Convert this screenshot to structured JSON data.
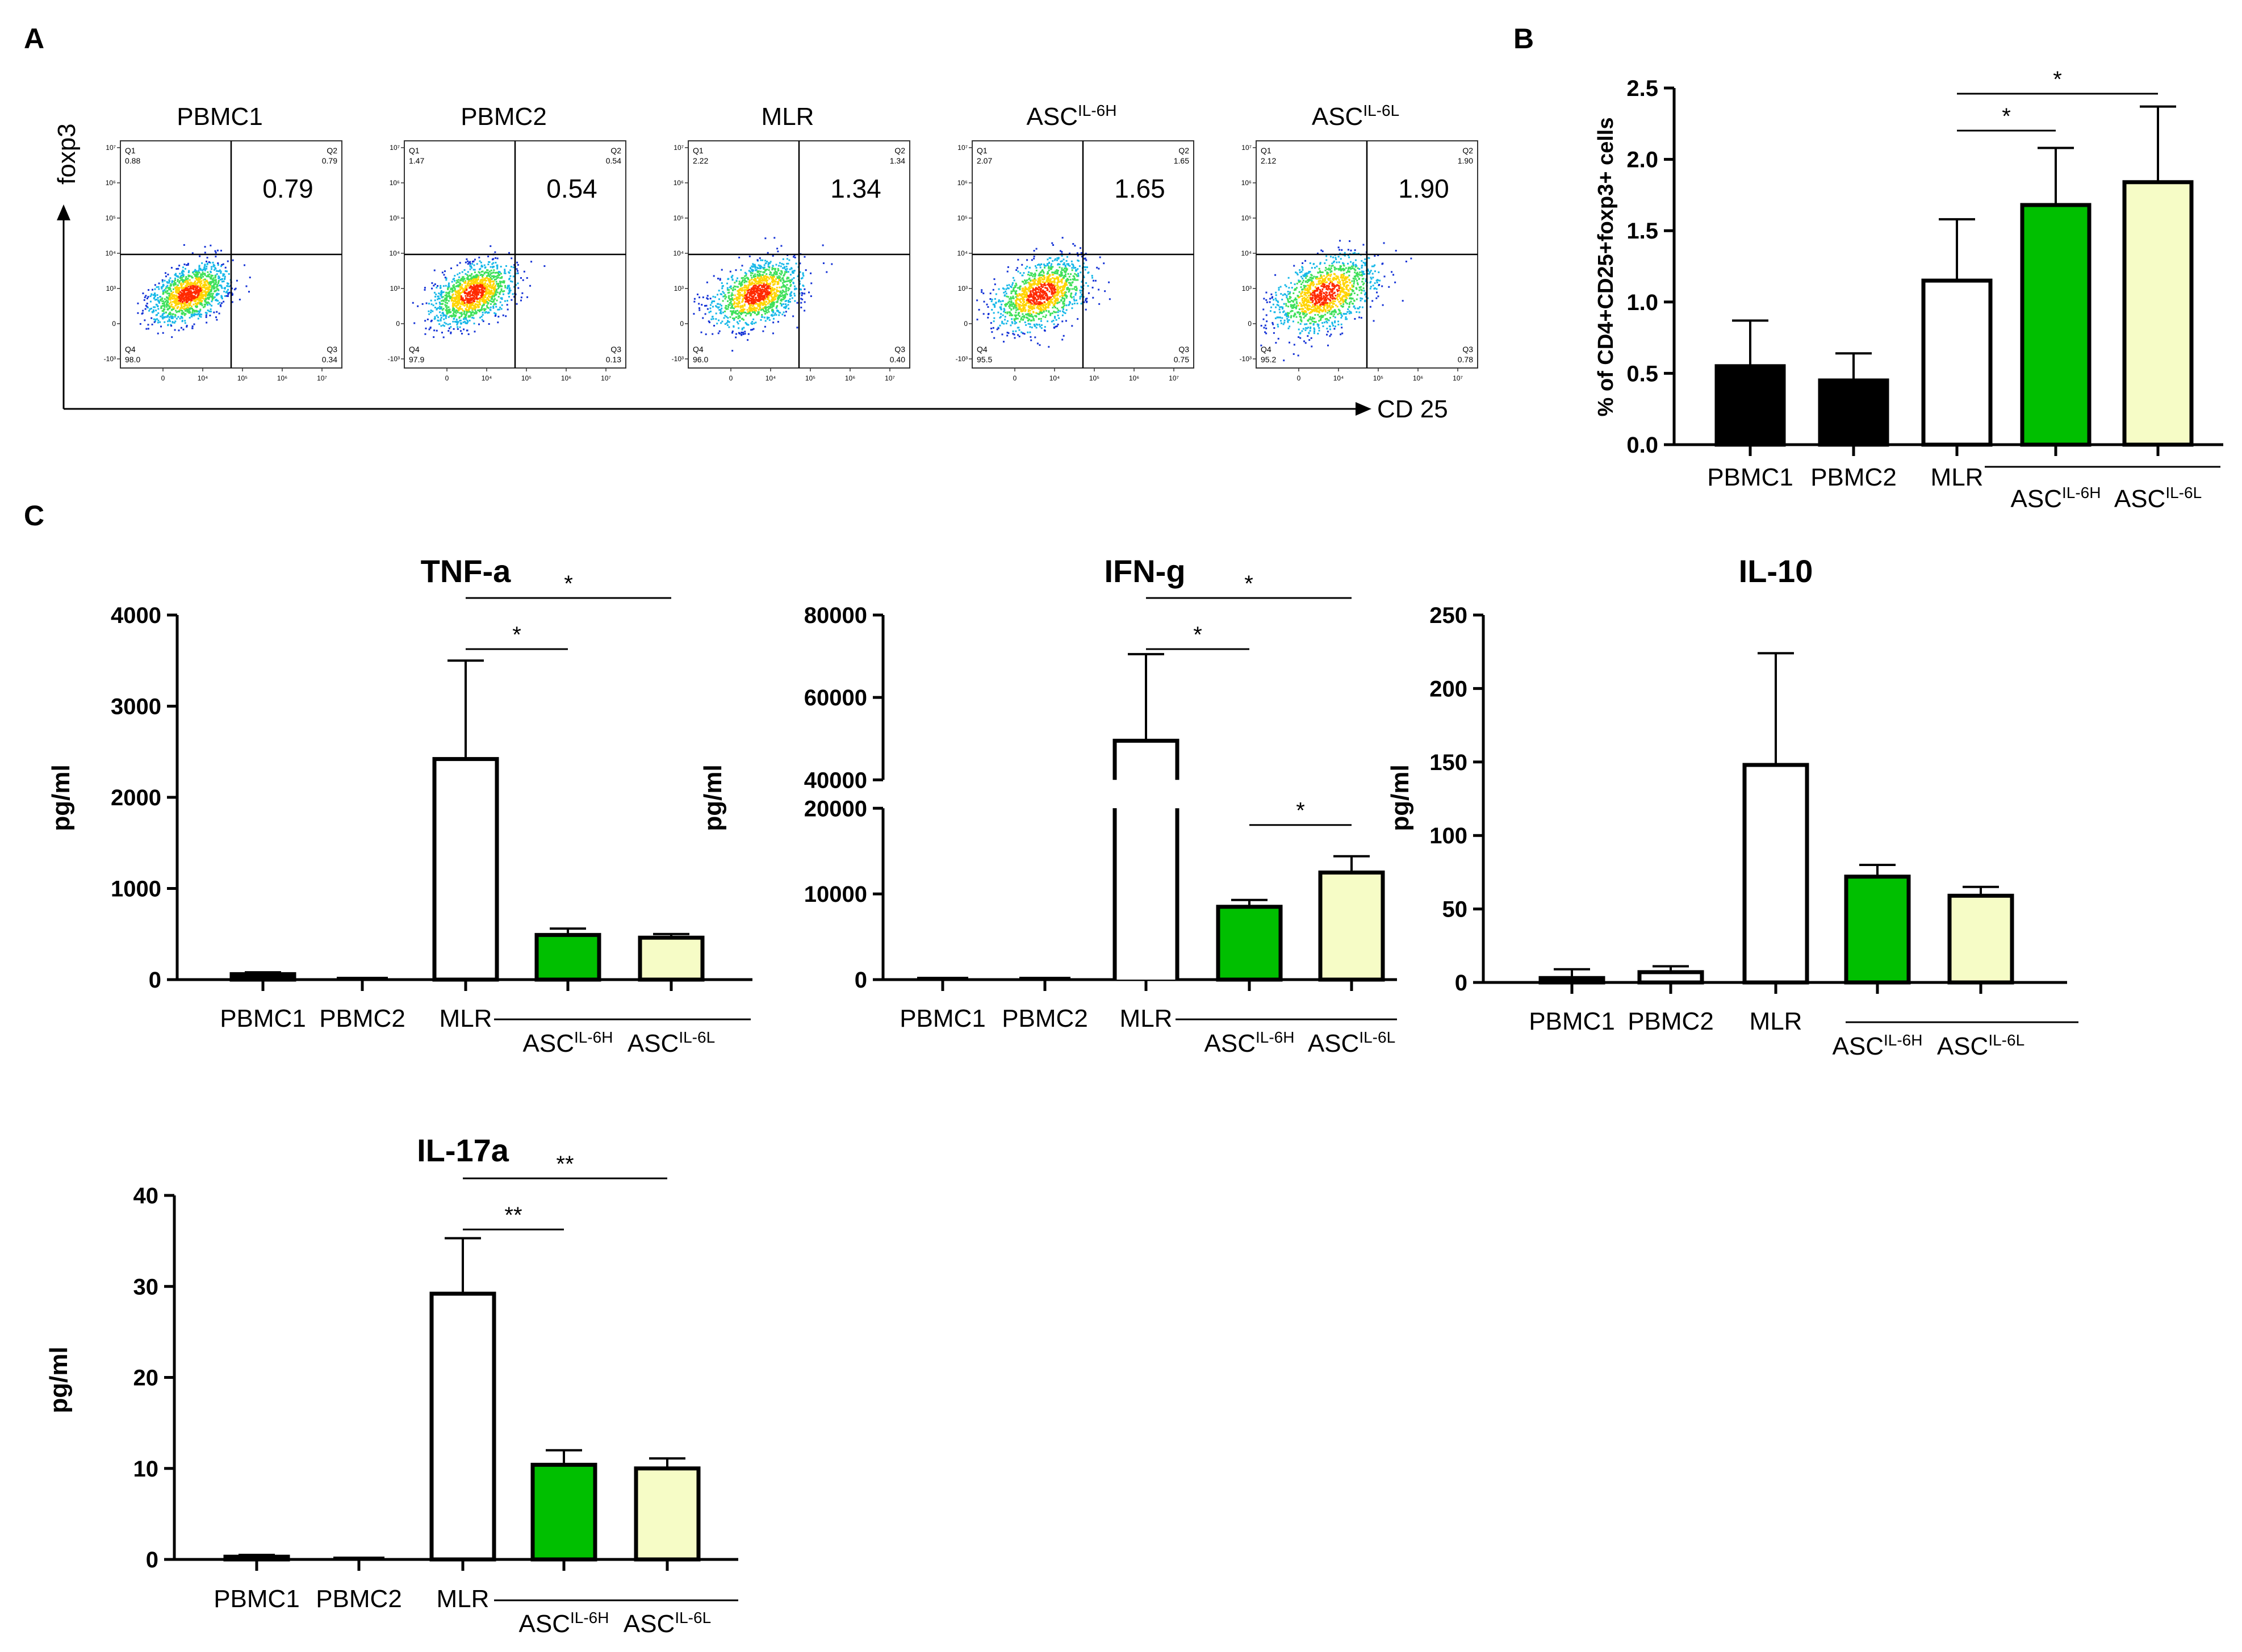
{
  "panel_letters": {
    "a": "A",
    "b": "B",
    "c": "C"
  },
  "colors": {
    "black": "#000000",
    "white": "#ffffff",
    "green": "#00bf00",
    "cream": "#f6fcc6"
  },
  "flow": {
    "y_axis_label": "foxp3",
    "x_axis_label": "CD 25",
    "decade_ticks": [
      "10⁷",
      "10⁶",
      "10⁵",
      "10⁴",
      "10³",
      "0",
      "-10³"
    ],
    "x_decade_ticks": [
      "0",
      "10⁴",
      "10⁵",
      "10⁶",
      "10⁷"
    ],
    "plots": [
      {
        "name": "PBMC1",
        "sup": "",
        "q1": "0.88",
        "q2": "0.79",
        "q3": "0.34",
        "q4": "98.0",
        "big": "0.79"
      },
      {
        "name": "PBMC2",
        "sup": "",
        "q1": "1.47",
        "q2": "0.54",
        "q3": "0.13",
        "q4": "97.9",
        "big": "0.54"
      },
      {
        "name": "MLR",
        "sup": "",
        "q1": "2.22",
        "q2": "1.34",
        "q3": "0.40",
        "q4": "96.0",
        "big": "1.34"
      },
      {
        "name": "ASC",
        "sup": "IL-6H",
        "q1": "2.07",
        "q2": "1.65",
        "q3": "0.75",
        "q4": "95.5",
        "big": "1.65"
      },
      {
        "name": "ASC",
        "sup": "IL-6L",
        "q1": "2.12",
        "q2": "1.90",
        "q3": "0.78",
        "q4": "95.2",
        "big": "1.90"
      }
    ],
    "quadrant_labels": {
      "q1": "Q1",
      "q2": "Q2",
      "q3": "Q3",
      "q4": "Q4"
    }
  },
  "chart_data": [
    {
      "id": "B",
      "type": "bar",
      "title": "",
      "ylabel": "% of CD4+CD25+foxp3+ cells",
      "ylim": [
        0,
        2.5
      ],
      "yticks": [
        0,
        0.5,
        1,
        1.5,
        2,
        2.5
      ],
      "ytick_labels": [
        "0.0",
        "0.5",
        "1.0",
        "1.5",
        "2.0",
        "2.5"
      ],
      "categories": [
        "PBMC1",
        "PBMC2",
        "MLR",
        "ASC",
        "ASC"
      ],
      "category_sups": [
        "",
        "",
        "",
        "IL-6H",
        "IL-6L"
      ],
      "values": [
        0.55,
        0.45,
        1.15,
        1.68,
        1.84
      ],
      "errors": [
        0.32,
        0.19,
        0.43,
        0.4,
        0.53
      ],
      "fills": [
        "black",
        "black",
        "white",
        "green",
        "cream"
      ],
      "significance": [
        {
          "from": 2,
          "to": 3,
          "label": "*"
        },
        {
          "from": 2,
          "to": 4,
          "label": "*"
        }
      ]
    },
    {
      "id": "TNF",
      "type": "bar",
      "title": "TNF-a",
      "ylabel": "pg/ml",
      "ylim": [
        0,
        4000
      ],
      "yticks": [
        0,
        1000,
        2000,
        3000,
        4000
      ],
      "ytick_labels": [
        "0",
        "1000",
        "2000",
        "3000",
        "4000"
      ],
      "categories": [
        "PBMC1",
        "PBMC2",
        "MLR",
        "ASC",
        "ASC"
      ],
      "category_sups": [
        "",
        "",
        "",
        "IL-6H",
        "IL-6L"
      ],
      "values": [
        60,
        10,
        2420,
        490,
        460
      ],
      "errors": [
        20,
        5,
        1080,
        70,
        40
      ],
      "fills": [
        "black",
        "black",
        "white",
        "green",
        "cream"
      ],
      "significance": [
        {
          "from": 2,
          "to": 3,
          "label": "*"
        },
        {
          "from": 2,
          "to": 4,
          "label": "*"
        }
      ]
    },
    {
      "id": "IFN",
      "type": "bar",
      "title": "IFN-g",
      "ylabel": "pg/ml",
      "ylim": [
        0,
        80000
      ],
      "axis_break": {
        "lower": [
          0,
          20000
        ],
        "upper": [
          40000,
          80000
        ]
      },
      "yticks": [
        0,
        10000,
        20000,
        40000,
        60000,
        80000
      ],
      "ytick_labels": [
        "0",
        "10000",
        "20000",
        "40000",
        "60000",
        "80000"
      ],
      "categories": [
        "PBMC1",
        "PBMC2",
        "MLR",
        "ASC",
        "ASC"
      ],
      "category_sups": [
        "",
        "",
        "",
        "IL-6H",
        "IL-6L"
      ],
      "values": [
        0,
        0,
        49500,
        8500,
        12500
      ],
      "errors": [
        0,
        0,
        21000,
        800,
        1900
      ],
      "fills": [
        "black",
        "black",
        "white",
        "green",
        "cream"
      ],
      "significance": [
        {
          "from": 2,
          "to": 3,
          "label": "*"
        },
        {
          "from": 2,
          "to": 4,
          "label": "*"
        },
        {
          "from": 3,
          "to": 4,
          "label": "*"
        }
      ]
    },
    {
      "id": "IL10",
      "type": "bar",
      "title": "IL-10",
      "ylabel": "pg/ml",
      "ylim": [
        0,
        250
      ],
      "yticks": [
        0,
        50,
        100,
        150,
        200,
        250
      ],
      "ytick_labels": [
        "0",
        "50",
        "100",
        "150",
        "200",
        "250"
      ],
      "categories": [
        "PBMC1",
        "PBMC2",
        "MLR",
        "ASC",
        "ASC"
      ],
      "category_sups": [
        "",
        "",
        "",
        "IL-6H",
        "IL-6L"
      ],
      "values": [
        3,
        7,
        148,
        72,
        59
      ],
      "errors": [
        6,
        4,
        76,
        8,
        6
      ],
      "fills": [
        "black",
        "white",
        "white",
        "green",
        "cream"
      ],
      "significance": []
    },
    {
      "id": "IL17",
      "type": "bar",
      "title": "IL-17a",
      "ylabel": "pg/ml",
      "ylim": [
        0,
        40
      ],
      "yticks": [
        0,
        10,
        20,
        30,
        40
      ],
      "ytick_labels": [
        "0",
        "10",
        "20",
        "30",
        "40"
      ],
      "categories": [
        "PBMC1",
        "PBMC2",
        "MLR",
        "ASC",
        "ASC"
      ],
      "category_sups": [
        "",
        "",
        "",
        "IL-6H",
        "IL-6L"
      ],
      "values": [
        0.3,
        0,
        29.2,
        10.4,
        10
      ],
      "errors": [
        0.2,
        0,
        6.1,
        1.6,
        1.1
      ],
      "fills": [
        "black",
        "black",
        "white",
        "green",
        "cream"
      ],
      "significance": [
        {
          "from": 2,
          "to": 3,
          "label": "**"
        },
        {
          "from": 2,
          "to": 4,
          "label": "**"
        }
      ]
    }
  ]
}
